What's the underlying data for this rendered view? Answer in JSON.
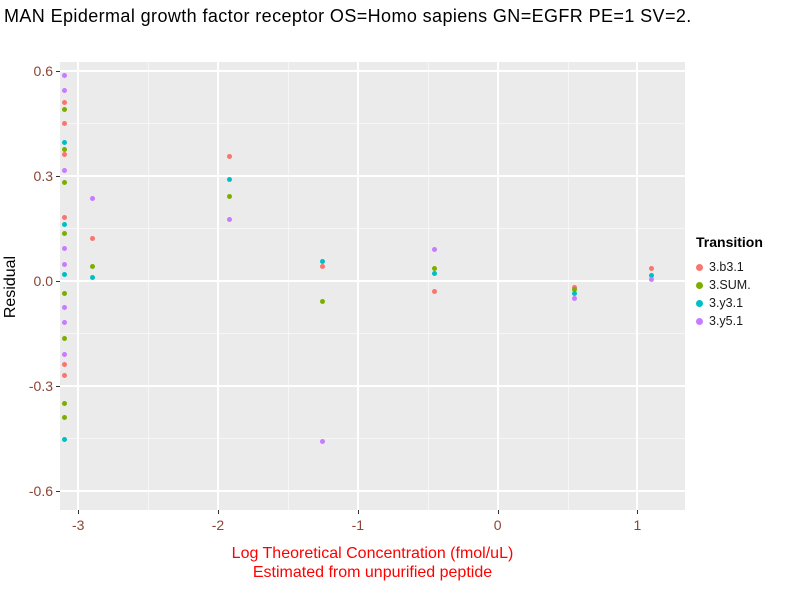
{
  "title": "MAN Epidermal growth factor receptor OS=Homo sapiens GN=EGFR PE=1 SV=2.",
  "y_axis": {
    "title": "Residual",
    "tick_labels": [
      "0.6",
      "0.3",
      "0.0",
      "-0.3",
      "-0.6"
    ]
  },
  "x_axis": {
    "title_line1": "Log Theoretical Concentration (fmol/uL)",
    "title_line2": "Estimated from unpurified peptide",
    "tick_labels": [
      "-3",
      "-2",
      "-1",
      "0",
      "1"
    ]
  },
  "legend": {
    "title": "Transition",
    "items": [
      {
        "label": "3.b3.1",
        "color": "#F8766D"
      },
      {
        "label": "3.SUM.",
        "color": "#7CAE00"
      },
      {
        "label": "3.y3.1",
        "color": "#00BFC4"
      },
      {
        "label": "3.y5.1",
        "color": "#C77CFF"
      }
    ]
  },
  "colors": {
    "panel_background": "#EBEBEB",
    "gridline": "#FFFFFF",
    "tick_label": "#8B4434",
    "x_axis_title": "#FF0000"
  },
  "chart_data": {
    "type": "scatter",
    "title": "MAN Epidermal growth factor receptor OS=Homo sapiens GN=EGFR PE=1 SV=2.",
    "xlabel": "Log Theoretical Concentration (fmol/uL) Estimated from unpurified peptide",
    "ylabel": "Residual",
    "xlim": [
      -3.13,
      1.34
    ],
    "ylim": [
      -0.655,
      0.625
    ],
    "x_ticks": [
      -3,
      -2,
      -1,
      0,
      1
    ],
    "y_ticks": [
      0.6,
      0.3,
      0.0,
      -0.3,
      -0.6
    ],
    "x_minor": [
      -2.5,
      -1.5,
      -0.5,
      0.5
    ],
    "y_minor": [
      0.45,
      0.15,
      -0.15,
      -0.45
    ],
    "grid": true,
    "legend_position": "right",
    "series": [
      {
        "name": "3.b3.1",
        "color": "#F8766D",
        "points": [
          [
            -3.1,
            0.51
          ],
          [
            -3.1,
            0.45
          ],
          [
            -3.1,
            0.36
          ],
          [
            -3.1,
            0.18
          ],
          [
            -3.1,
            -0.24
          ],
          [
            -3.1,
            -0.27
          ],
          [
            -2.9,
            0.12
          ],
          [
            -1.92,
            0.355
          ],
          [
            -1.25,
            0.04
          ],
          [
            -0.45,
            -0.03
          ],
          [
            0.55,
            -0.02
          ],
          [
            1.1,
            0.035
          ]
        ]
      },
      {
        "name": "3.SUM.",
        "color": "#7CAE00",
        "points": [
          [
            -3.1,
            0.49
          ],
          [
            -3.1,
            0.375
          ],
          [
            -3.1,
            0.28
          ],
          [
            -3.1,
            0.135
          ],
          [
            -3.1,
            -0.035
          ],
          [
            -3.1,
            -0.165
          ],
          [
            -3.1,
            -0.35
          ],
          [
            -3.1,
            -0.39
          ],
          [
            -2.9,
            0.04
          ],
          [
            -1.92,
            0.24
          ],
          [
            -1.25,
            -0.06
          ],
          [
            -0.45,
            0.035
          ],
          [
            0.55,
            -0.025
          ]
        ]
      },
      {
        "name": "3.y3.1",
        "color": "#00BFC4",
        "points": [
          [
            -3.1,
            0.394
          ],
          [
            -3.1,
            0.16
          ],
          [
            -3.1,
            0.017
          ],
          [
            -3.1,
            -0.454
          ],
          [
            -2.9,
            0.01
          ],
          [
            -1.92,
            0.29
          ],
          [
            -1.25,
            0.055
          ],
          [
            -0.45,
            0.02
          ],
          [
            0.55,
            -0.035
          ],
          [
            1.1,
            0.015
          ]
        ]
      },
      {
        "name": "3.y5.1",
        "color": "#C77CFF",
        "points": [
          [
            -3.1,
            0.586
          ],
          [
            -3.1,
            0.543
          ],
          [
            -3.1,
            0.314
          ],
          [
            -3.1,
            0.091
          ],
          [
            -3.1,
            0.046
          ],
          [
            -3.1,
            -0.077
          ],
          [
            -3.1,
            -0.12
          ],
          [
            -3.1,
            -0.211
          ],
          [
            -2.9,
            0.235
          ],
          [
            -1.92,
            0.175
          ],
          [
            -1.25,
            -0.46
          ],
          [
            -0.45,
            0.09
          ],
          [
            0.55,
            -0.05
          ],
          [
            1.1,
            0.005
          ]
        ]
      }
    ]
  }
}
